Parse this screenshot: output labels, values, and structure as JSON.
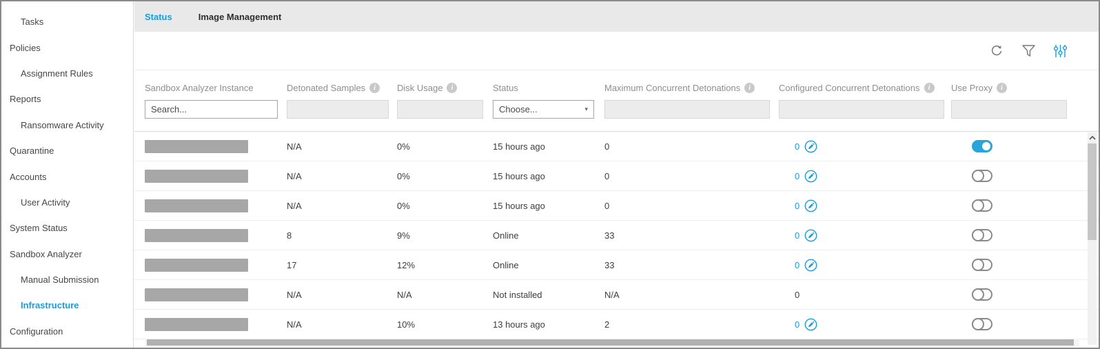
{
  "sidebar": {
    "items": [
      {
        "label": "Tasks",
        "level": 1,
        "active": false
      },
      {
        "label": "Policies",
        "level": 0,
        "active": false
      },
      {
        "label": "Assignment Rules",
        "level": 1,
        "active": false
      },
      {
        "label": "Reports",
        "level": 0,
        "active": false
      },
      {
        "label": "Ransomware Activity",
        "level": 1,
        "active": false
      },
      {
        "label": "Quarantine",
        "level": 0,
        "active": false
      },
      {
        "label": "Accounts",
        "level": 0,
        "active": false
      },
      {
        "label": "User Activity",
        "level": 1,
        "active": false
      },
      {
        "label": "System Status",
        "level": 0,
        "active": false
      },
      {
        "label": "Sandbox Analyzer",
        "level": 0,
        "active": false
      },
      {
        "label": "Manual Submission",
        "level": 1,
        "active": false
      },
      {
        "label": "Infrastructure",
        "level": 1,
        "active": true
      },
      {
        "label": "Configuration",
        "level": 0,
        "active": false
      }
    ]
  },
  "tabs": [
    {
      "label": "Status",
      "active": true
    },
    {
      "label": "Image Management",
      "active": false
    }
  ],
  "toolbar": {
    "icons": [
      "refresh-icon",
      "filter-icon",
      "settings-sliders-icon"
    ]
  },
  "table": {
    "columns": [
      {
        "label": "Sandbox Analyzer Instance",
        "info": false,
        "filter": "search",
        "placeholder": "Search..."
      },
      {
        "label": "Detonated Samples",
        "info": true,
        "filter": "disabled"
      },
      {
        "label": "Disk Usage",
        "info": true,
        "filter": "disabled"
      },
      {
        "label": "Status",
        "info": false,
        "filter": "select",
        "placeholder": "Choose..."
      },
      {
        "label": "Maximum Concurrent Detonations",
        "info": true,
        "filter": "disabled"
      },
      {
        "label": "Configured Concurrent Detonations",
        "info": true,
        "filter": "disabled"
      },
      {
        "label": "Use Proxy",
        "info": true,
        "filter": "disabled"
      }
    ],
    "rows": [
      {
        "instance": "",
        "redacted": true,
        "detonated": "N/A",
        "disk": "0%",
        "status": "15 hours ago",
        "max": "0",
        "configured": "0",
        "editable": true,
        "proxy_on": true
      },
      {
        "instance": "",
        "redacted": true,
        "detonated": "N/A",
        "disk": "0%",
        "status": "15 hours ago",
        "max": "0",
        "configured": "0",
        "editable": true,
        "proxy_on": false
      },
      {
        "instance": "",
        "redacted": true,
        "detonated": "N/A",
        "disk": "0%",
        "status": "15 hours ago",
        "max": "0",
        "configured": "0",
        "editable": true,
        "proxy_on": false
      },
      {
        "instance": "",
        "redacted": true,
        "detonated": "8",
        "disk": "9%",
        "status": "Online",
        "max": "33",
        "configured": "0",
        "editable": true,
        "proxy_on": false
      },
      {
        "instance": "",
        "redacted": true,
        "detonated": "17",
        "disk": "12%",
        "status": "Online",
        "max": "33",
        "configured": "0",
        "editable": true,
        "proxy_on": false
      },
      {
        "instance": "",
        "redacted": true,
        "detonated": "N/A",
        "disk": "N/A",
        "status": "Not installed",
        "max": "N/A",
        "configured": "0",
        "editable": false,
        "proxy_on": false
      },
      {
        "instance": "",
        "redacted": true,
        "detonated": "N/A",
        "disk": "10%",
        "status": "13 hours ago",
        "max": "2",
        "configured": "0",
        "editable": true,
        "proxy_on": false
      }
    ]
  },
  "colors": {
    "accent_blue": "#189dd9",
    "toggle_on": "#29a4dc",
    "redacted_bar": "#a7a7a7",
    "tabbar_bg": "#e9e9e9",
    "header_text": "#8e8e8e",
    "cell_text": "#3d3d3d"
  }
}
